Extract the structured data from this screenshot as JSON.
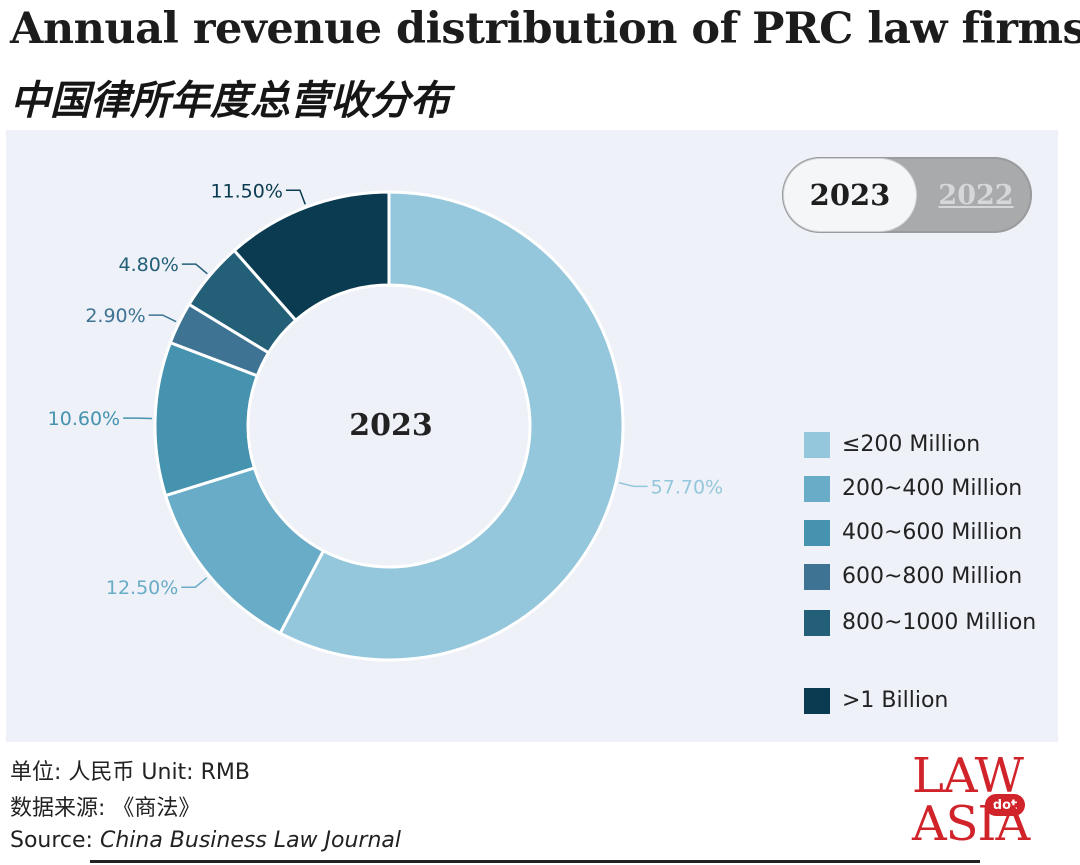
{
  "header": {
    "title_en": "Annual revenue distribution of PRC law firms",
    "title_zh": "中国律所年度总营收分布"
  },
  "toggle": {
    "active": "2023",
    "inactive": "2022"
  },
  "chart_data": {
    "type": "pie",
    "variant": "donut",
    "center_label": "2023",
    "categories": [
      "≤200 Million",
      "200~400 Million",
      "400~600 Million",
      "600~800 Million",
      "800~1000 Million",
      ">1 Billion"
    ],
    "values": [
      57.7,
      12.5,
      10.6,
      2.9,
      4.8,
      11.5
    ],
    "value_labels": [
      "57.70%",
      "12.50%",
      "10.60%",
      "2.90%",
      "4.80%",
      "11.50%"
    ],
    "colors": [
      "#95c7dc",
      "#69acc7",
      "#4593ae",
      "#3e7393",
      "#245f78",
      "#0a3b51"
    ],
    "legend_position": "right"
  },
  "footer": {
    "unit": "单位: 人民币   Unit: RMB",
    "data_source_zh": "数据来源: 《商法》",
    "source_prefix": "Source: ",
    "source_name": "China Business Law Journal"
  },
  "brand": {
    "line1": "LAW",
    "dot": "dot",
    "line2": "ASIA"
  }
}
